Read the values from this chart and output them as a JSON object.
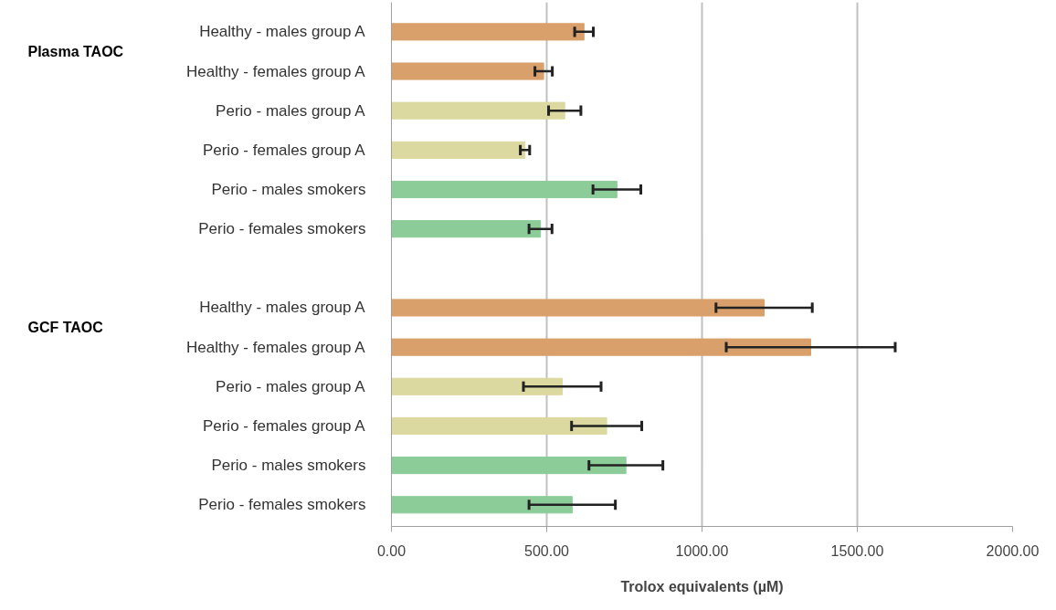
{
  "chart_data": {
    "type": "bar",
    "orientation": "horizontal",
    "xlabel": "Trolox equivalents (µM)",
    "annotations": [
      "Plasma TAOC",
      "GCF TAOC"
    ],
    "categories": [
      "Healthy - males group A",
      "Healthy - females group A",
      "Perio - males group A",
      "Perio - females group A",
      "Perio - males smokers",
      "Perio - females smokers",
      null,
      "Healthy - males group A",
      "Healthy - females group A",
      "Perio - males group A",
      "Perio - females group A",
      "Perio - males smokers",
      "Perio - females smokers"
    ],
    "values": [
      620,
      490,
      558,
      430,
      726,
      480,
      null,
      1200,
      1350,
      550,
      693,
      755,
      582
    ],
    "errors": [
      30,
      28,
      52,
      15,
      77,
      37,
      null,
      155,
      272,
      125,
      113,
      119,
      139
    ],
    "colors": [
      "#d9a06c",
      "#d9a06c",
      "#dcd9a0",
      "#dcd9a0",
      "#8ccc98",
      "#8ccc98",
      null,
      "#d9a06c",
      "#d9a06c",
      "#dcd9a0",
      "#dcd9a0",
      "#8ccc98",
      "#8ccc98"
    ],
    "xlim": [
      0,
      2000
    ],
    "xticks": [
      {
        "value": 0,
        "label": "0.00"
      },
      {
        "value": 500,
        "label": "500.00"
      },
      {
        "value": 1000,
        "label": "1000.00"
      },
      {
        "value": 1500,
        "label": "1500.00"
      },
      {
        "value": 2000,
        "label": "2000.00"
      }
    ],
    "grid": "x"
  }
}
